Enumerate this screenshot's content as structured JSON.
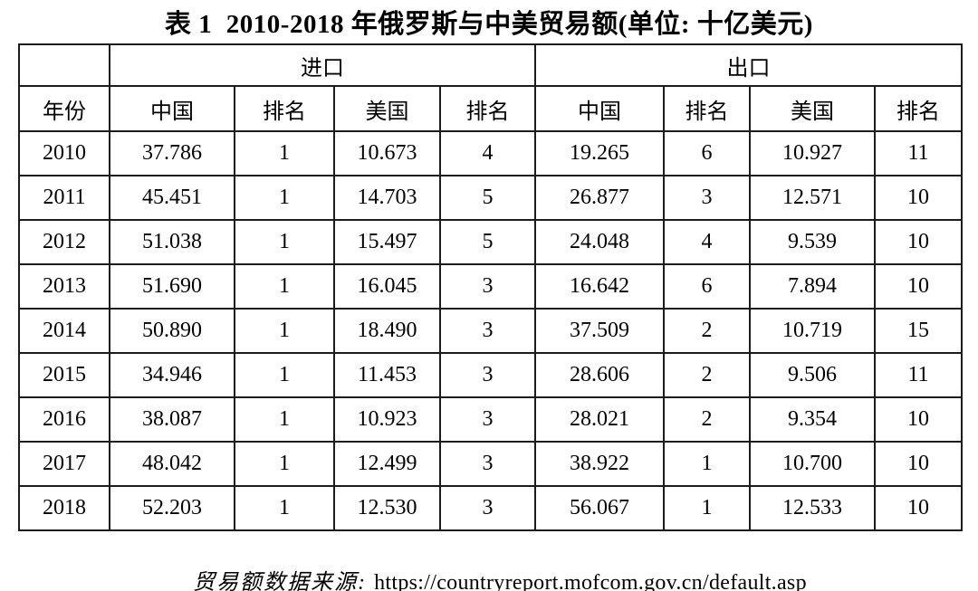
{
  "title": "表 1  2010-2018 年俄罗斯与中美贸易额(单位: 十亿美元)",
  "table": {
    "group_header": {
      "corner": "",
      "import_label": "进口",
      "export_label": "出口"
    },
    "columns": [
      "年份",
      "中国",
      "排名",
      "美国",
      "排名",
      "中国",
      "排名",
      "美国",
      "排名"
    ],
    "rows": [
      [
        "2010",
        "37.786",
        "1",
        "10.673",
        "4",
        "19.265",
        "6",
        "10.927",
        "11"
      ],
      [
        "2011",
        "45.451",
        "1",
        "14.703",
        "5",
        "26.877",
        "3",
        "12.571",
        "10"
      ],
      [
        "2012",
        "51.038",
        "1",
        "15.497",
        "5",
        "24.048",
        "4",
        "9.539",
        "10"
      ],
      [
        "2013",
        "51.690",
        "1",
        "16.045",
        "3",
        "16.642",
        "6",
        "7.894",
        "10"
      ],
      [
        "2014",
        "50.890",
        "1",
        "18.490",
        "3",
        "37.509",
        "2",
        "10.719",
        "15"
      ],
      [
        "2015",
        "34.946",
        "1",
        "11.453",
        "3",
        "28.606",
        "2",
        "9.506",
        "11"
      ],
      [
        "2016",
        "38.087",
        "1",
        "10.923",
        "3",
        "28.021",
        "2",
        "9.354",
        "10"
      ],
      [
        "2017",
        "48.042",
        "1",
        "12.499",
        "3",
        "38.922",
        "1",
        "10.700",
        "10"
      ],
      [
        "2018",
        "52.203",
        "1",
        "12.530",
        "3",
        "56.067",
        "1",
        "12.533",
        "10"
      ]
    ]
  },
  "footer": {
    "source_label": "贸易额数据来源: ",
    "source_url": "https://countryreport.mofcom.gov.cn/default.asp"
  },
  "colors": {
    "text": "#000000",
    "border": "#1c1c1c",
    "background": "#ffffff"
  }
}
